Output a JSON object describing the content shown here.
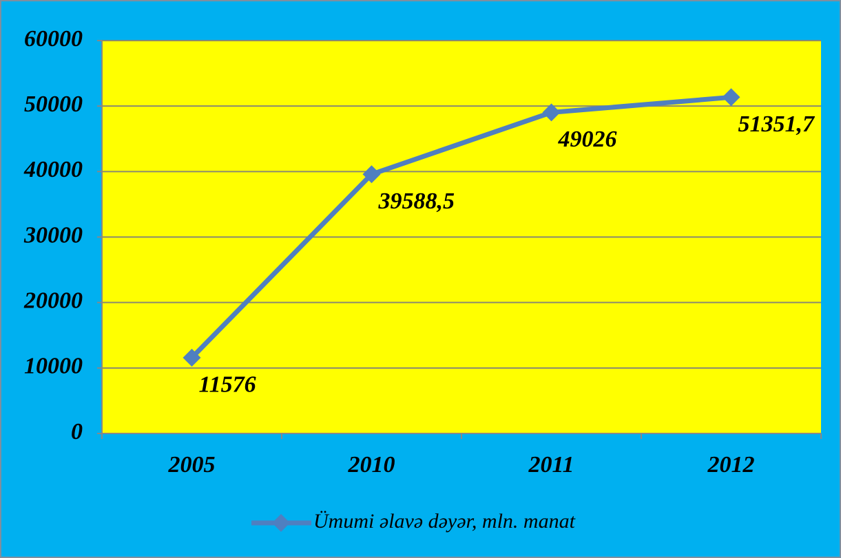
{
  "chart_data": {
    "type": "line",
    "categories": [
      "2005",
      "2010",
      "2011",
      "2012"
    ],
    "series": [
      {
        "name": "Ümumi əlavə dəyər, mln. manat",
        "color": "#4f7fc0",
        "values": [
          11576,
          39588.5,
          49026,
          51351.7
        ],
        "value_labels": [
          "11576",
          "39588,5",
          "49026",
          "51351,7"
        ]
      }
    ],
    "ylim": [
      0,
      60000
    ],
    "yticks": [
      0,
      10000,
      20000,
      30000,
      40000,
      50000,
      60000
    ],
    "grid": true,
    "legend": "bottom",
    "background": "#00b0f0",
    "plot_background": "#ffff00"
  }
}
